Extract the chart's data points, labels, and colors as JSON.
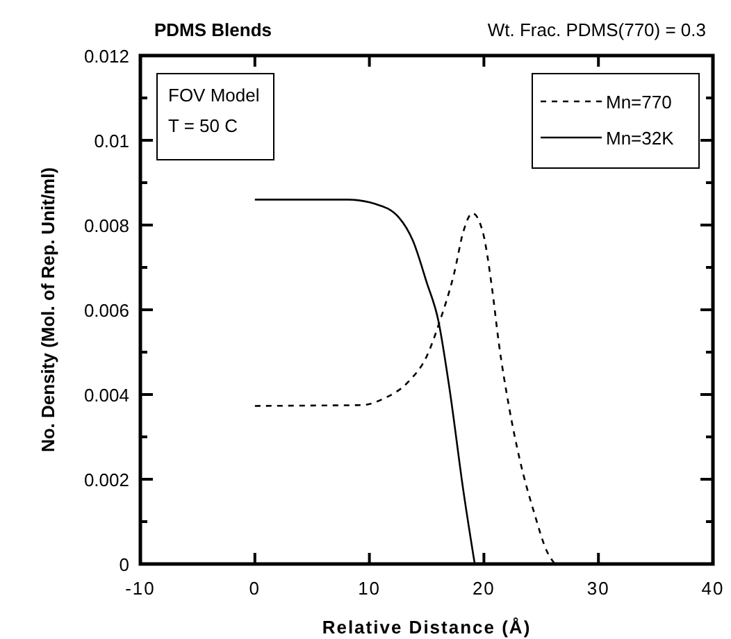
{
  "chart_data": {
    "type": "line",
    "title": "PDMS  Blends",
    "subtitle": "Wt. Frac. PDMS(770) = 0.3",
    "xlabel": "Relative  Distance  (Å)",
    "ylabel": "No.  Density  (Mol.  of  Rep.  Unit/ml)",
    "annotations": [
      "FOV Model",
      "T = 50 C"
    ],
    "xlim": [
      -10,
      40
    ],
    "xticks": [
      {
        "value": -10,
        "label": "-10"
      },
      0,
      10,
      20,
      30,
      40
    ],
    "ylim": [
      0,
      0.012
    ],
    "yticks": [
      0,
      {
        "value": 0.001,
        "label": null
      },
      0.002,
      {
        "value": 0.003,
        "label": null
      },
      0.004,
      {
        "value": 0.005,
        "label": null
      },
      0.006,
      {
        "value": 0.007,
        "label": null
      },
      0.008,
      {
        "value": 0.009,
        "label": null
      },
      0.01,
      {
        "value": 0.011,
        "label": null
      },
      0.012
    ],
    "grid": false,
    "legend": "top right",
    "series": [
      {
        "name": "Mn=770",
        "color": "#000000",
        "line_style": "dashed",
        "x": [
          0,
          5,
          9.3,
          11.3,
          13.4,
          15,
          16.2,
          17.4,
          18.2,
          19,
          19.9,
          20.7,
          21.3,
          22.2,
          23.1,
          24.4,
          25.5,
          26.2
        ],
        "values": [
          0.00373,
          0.00374,
          0.00375,
          0.00391,
          0.0043,
          0.0049,
          0.00577,
          0.00686,
          0.00784,
          0.00828,
          0.00784,
          0.00653,
          0.00522,
          0.0037,
          0.0025,
          0.0012,
          0.0003,
          0
        ]
      },
      {
        "name": "Mn=32K",
        "color": "#000000",
        "line_style": "solid",
        "x": [
          0,
          5,
          8.1,
          10.5,
          12.6,
          13.8,
          15,
          16,
          17,
          18.2,
          19.2
        ],
        "values": [
          0.0086,
          0.0086,
          0.0086,
          0.0085,
          0.00817,
          0.00763,
          0.00665,
          0.00577,
          0.00413,
          0.00174,
          0
        ]
      }
    ]
  }
}
